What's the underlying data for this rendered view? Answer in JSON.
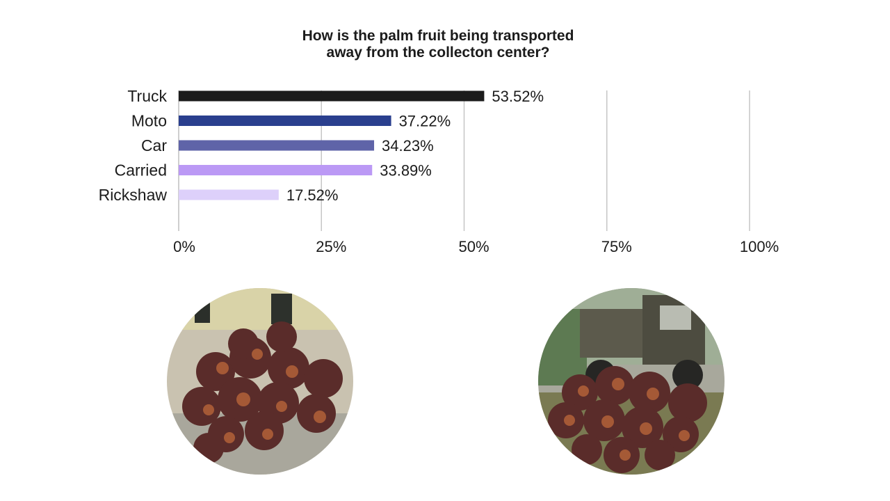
{
  "chart_data": {
    "type": "bar",
    "orientation": "horizontal",
    "title_lines": [
      "How is the palm fruit being transported",
      "away from the collecton center?"
    ],
    "categories": [
      "Truck",
      "Moto",
      "Car",
      "Carried",
      "Rickshaw"
    ],
    "values": [
      53.52,
      37.22,
      34.23,
      33.89,
      17.52
    ],
    "value_labels": [
      "53.52%",
      "37.22%",
      "34.23%",
      "33.89%",
      "17.52%"
    ],
    "colors": [
      "#1c1c1c",
      "#2a3f8e",
      "#5f64a8",
      "#bb99f5",
      "#ddd0fa"
    ],
    "xlim": [
      0,
      100
    ],
    "x_ticks": [
      0,
      25,
      50,
      75,
      100
    ],
    "x_tick_labels": [
      "0%",
      "25%",
      "50%",
      "75%",
      "100%"
    ],
    "grid": true
  },
  "photos": [
    {
      "name": "photo-palm-fruit-pile",
      "icon": "palm-fruit-pile-photo"
    },
    {
      "name": "photo-truck-with-palm-fruit",
      "icon": "truck-palm-fruit-photo"
    }
  ]
}
